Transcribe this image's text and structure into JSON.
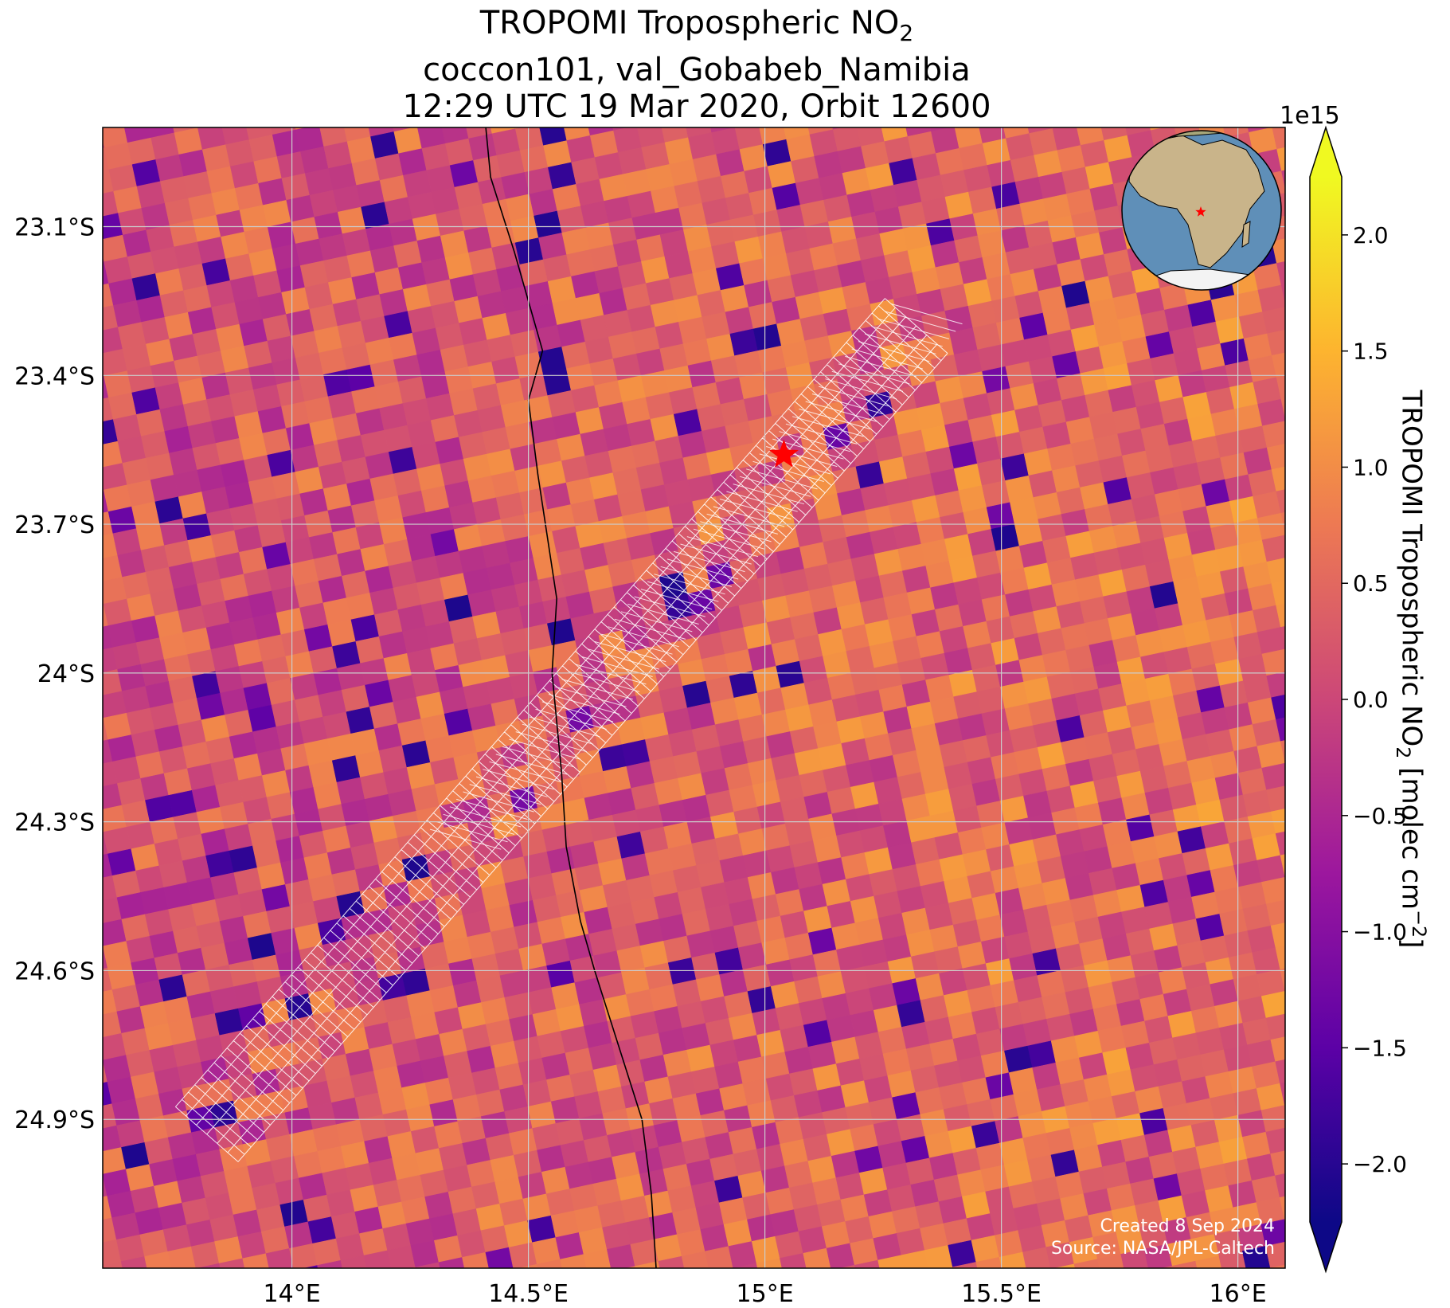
{
  "title": {
    "line1_main": "TROPOMI Tropospheric NO",
    "line1_sub": "2",
    "line2": "coccon101, val_Gobabeb_Namibia",
    "line3": "12:29 UTC 19 Mar 2020, Orbit 12600"
  },
  "colorbar": {
    "label_main": "TROPOMI Tropospheric NO",
    "label_sub": "2",
    "label_units": " [molec cm",
    "label_sup": "−2",
    "label_end": "]",
    "offset": "1e15",
    "ticks": [
      {
        "value": 2.0,
        "label": "2.0"
      },
      {
        "value": 1.5,
        "label": "1.5"
      },
      {
        "value": 1.0,
        "label": "1.0"
      },
      {
        "value": 0.5,
        "label": "0.5"
      },
      {
        "value": 0.0,
        "label": "0.0"
      },
      {
        "value": -0.5,
        "label": "−0.5"
      },
      {
        "value": -1.0,
        "label": "−1.0"
      },
      {
        "value": -1.5,
        "label": "−1.5"
      },
      {
        "value": -2.0,
        "label": "−2.0"
      }
    ],
    "range": [
      -2.25,
      2.25
    ],
    "extend": "both",
    "colormap": "plasma",
    "colors": [
      "#0d0887",
      "#5c01a6",
      "#9c179e",
      "#cc4778",
      "#ed7953",
      "#fdb42f",
      "#f0f921"
    ]
  },
  "credits": {
    "line1": "Created 8 Sep 2024",
    "line2": "Source: NASA/JPL-Caltech"
  },
  "chart_data": {
    "type": "heatmap",
    "title": "TROPOMI Tropospheric NO2 — coccon101, val_Gobabeb_Namibia — 12:29 UTC 19 Mar 2020, Orbit 12600",
    "x_axis": {
      "label": "",
      "range": [
        13.6,
        16.1
      ],
      "ticks": [
        {
          "value": 14.0,
          "label": "14°E"
        },
        {
          "value": 14.5,
          "label": "14.5°E"
        },
        {
          "value": 15.0,
          "label": "15°E"
        },
        {
          "value": 15.5,
          "label": "15.5°E"
        },
        {
          "value": 16.0,
          "label": "16°E"
        }
      ]
    },
    "y_axis": {
      "label": "",
      "range": [
        -25.2,
        -22.9
      ],
      "ticks": [
        {
          "value": -23.1,
          "label": "23.1°S"
        },
        {
          "value": -23.4,
          "label": "23.4°S"
        },
        {
          "value": -23.7,
          "label": "23.7°S"
        },
        {
          "value": -24.0,
          "label": "24°S"
        },
        {
          "value": -24.3,
          "label": "24.3°S"
        },
        {
          "value": -24.6,
          "label": "24.6°S"
        },
        {
          "value": -24.9,
          "label": "24.9°S"
        }
      ]
    },
    "value_scale": "1e15 molec cm^-2",
    "grid": true,
    "site": {
      "name": "val_Gobabeb_Namibia",
      "lon": 15.04,
      "lat": -23.56,
      "marker": "red star"
    },
    "coastline": [
      [
        14.41,
        -22.9
      ],
      [
        14.42,
        -23.0
      ],
      [
        14.47,
        -23.15
      ],
      [
        14.53,
        -23.35
      ],
      [
        14.5,
        -23.45
      ],
      [
        14.52,
        -23.6
      ],
      [
        14.56,
        -23.85
      ],
      [
        14.55,
        -24.0
      ],
      [
        14.57,
        -24.2
      ],
      [
        14.58,
        -24.35
      ],
      [
        14.61,
        -24.5
      ],
      [
        14.64,
        -24.6
      ],
      [
        14.69,
        -24.75
      ],
      [
        14.74,
        -24.9
      ],
      [
        14.76,
        -25.05
      ],
      [
        14.77,
        -25.2
      ]
    ],
    "validation_footprints": {
      "description": "white outlined TROPOMI pixel grid along satellite track",
      "track": [
        [
          13.82,
          -24.93
        ],
        [
          15.32,
          -23.3
        ]
      ],
      "track_width_deg": 0.16
    },
    "inset": "globe showing Africa with red star at site location",
    "colorbar_range": [
      -2.25,
      2.25
    ],
    "colormap": "plasma"
  }
}
